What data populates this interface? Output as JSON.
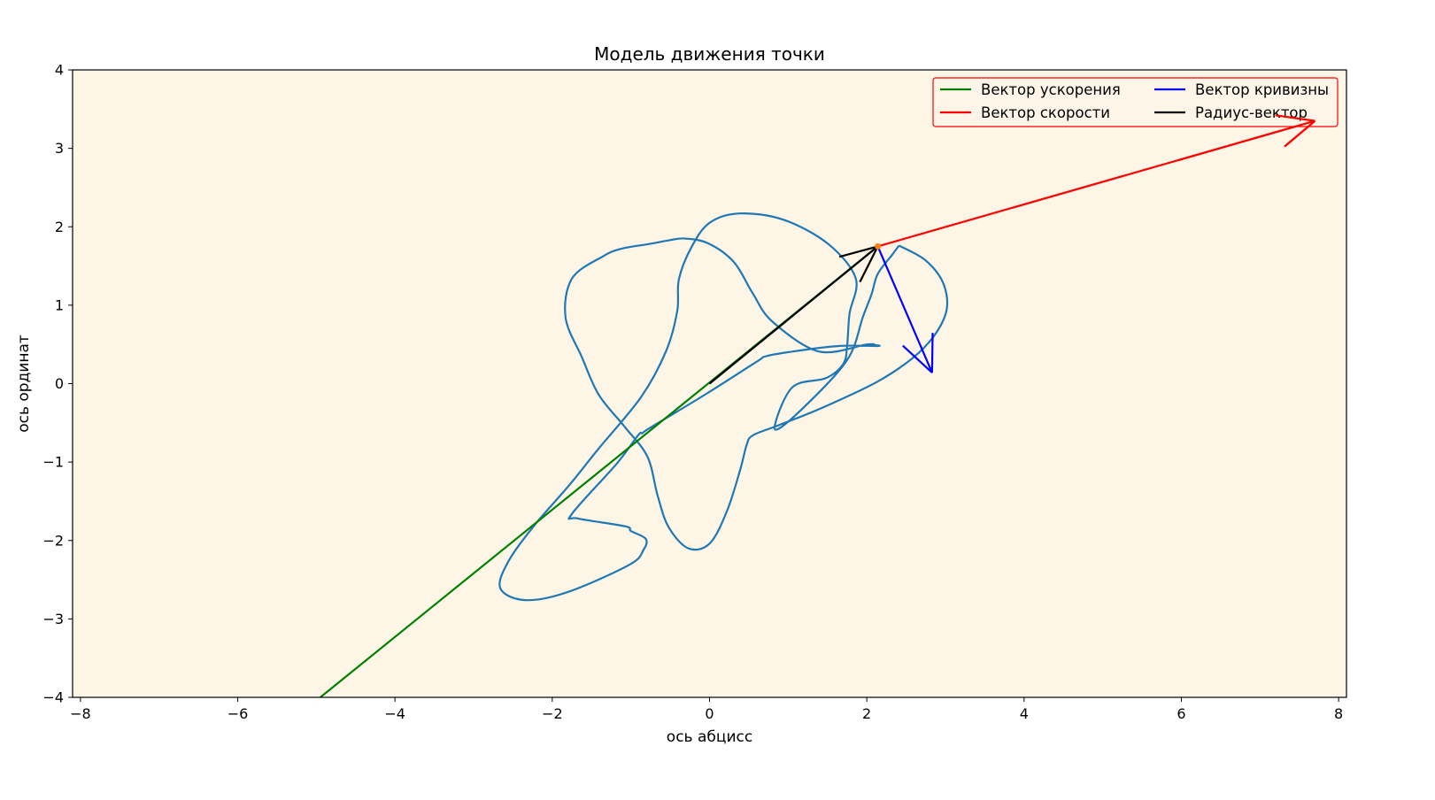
{
  "chart_data": {
    "type": "line",
    "title": "Модель движения точки",
    "xlabel": "ось абцисс",
    "ylabel": "ось ординат",
    "xlim": [
      -8.1,
      8.1
    ],
    "ylim": [
      -4,
      4
    ],
    "xticks": [
      -8,
      -6,
      -4,
      -2,
      0,
      2,
      4,
      6,
      8
    ],
    "yticks": [
      -4,
      -3,
      -2,
      -1,
      0,
      1,
      2,
      3,
      4
    ],
    "xtick_labels": [
      "−8",
      "−6",
      "−4",
      "−2",
      "0",
      "2",
      "4",
      "6",
      "8"
    ],
    "ytick_labels": [
      "−4",
      "−3",
      "−2",
      "−1",
      "0",
      "1",
      "2",
      "3",
      "4"
    ],
    "axes_facecolor": "#fdf5e6",
    "grid": false,
    "legend": {
      "placement": "upper right",
      "columns": 2
    },
    "trajectory": {
      "color": "#1f77b4",
      "x": [
        2.41,
        2.75,
        2.98,
        3.0,
        2.72,
        2.18,
        1.45,
        0.88,
        0.55,
        0.47,
        0.39,
        0.22,
        0.0,
        -0.27,
        -0.52,
        -0.66,
        -0.79,
        -1.08,
        -1.41,
        -1.62,
        -1.83,
        -1.75,
        -1.36,
        -1.12,
        -0.77,
        -0.5,
        -0.32,
        -0.02,
        0.31,
        0.55,
        0.8,
        1.39,
        2.0,
        2.11,
        2.12,
        2.13,
        1.64,
        1.06,
        0.72,
        0.6,
        -0.04,
        -0.75,
        -0.85,
        -0.91,
        -1.18,
        -1.75,
        -1.67,
        -1.07,
        -1.0,
        -0.81,
        -0.84,
        -1.02,
        -1.81,
        -2.35,
        -2.66,
        -2.56,
        -2.23,
        -1.78,
        -1.42,
        -0.87,
        -0.55,
        -0.41,
        -0.39,
        -0.23,
        0.0,
        0.38,
        0.94,
        1.51,
        1.86,
        1.78,
        1.75,
        1.7,
        1.48,
        1.05,
        0.83,
        1.18,
        1.75,
        1.95,
        2.06,
        2.14,
        2.32,
        2.41
      ],
      "y": [
        1.76,
        1.57,
        1.26,
        0.88,
        0.45,
        0.05,
        -0.3,
        -0.53,
        -0.66,
        -0.79,
        -1.1,
        -1.63,
        -2.04,
        -2.1,
        -1.83,
        -1.43,
        -0.93,
        -0.55,
        -0.14,
        0.33,
        0.84,
        1.34,
        1.62,
        1.72,
        1.78,
        1.83,
        1.85,
        1.79,
        1.55,
        1.15,
        0.79,
        0.41,
        0.5,
        0.49,
        0.49,
        0.48,
        0.48,
        0.41,
        0.35,
        0.28,
        -0.13,
        -0.56,
        -0.63,
        -0.66,
        -1.02,
        -1.66,
        -1.72,
        -1.82,
        -1.88,
        -1.98,
        -2.12,
        -2.31,
        -2.66,
        -2.76,
        -2.61,
        -2.27,
        -1.81,
        -1.29,
        -0.84,
        -0.17,
        0.42,
        0.93,
        1.33,
        1.74,
        2.05,
        2.17,
        2.09,
        1.78,
        1.34,
        0.89,
        0.48,
        0.25,
        0.07,
        -0.05,
        -0.58,
        -0.32,
        0.3,
        0.85,
        1.14,
        1.4,
        1.64,
        1.76
      ]
    },
    "point": {
      "x": 2.14,
      "y": 1.75,
      "color": "#ff7f0e"
    },
    "vectors": [
      {
        "name": "Вектор ускорения",
        "color": "#008000",
        "from": [
          2.14,
          1.75
        ],
        "to": [
          -4.95,
          -4.0
        ],
        "head": false
      },
      {
        "name": "Вектор скорости",
        "color": "#ff0000",
        "from": [
          2.14,
          1.75
        ],
        "to": [
          7.7,
          3.35
        ],
        "head": true
      },
      {
        "name": "Вектор кривизны",
        "color": "#0000ff",
        "from": [
          2.14,
          1.75
        ],
        "to": [
          2.83,
          0.14
        ],
        "head": true
      },
      {
        "name": "Радиус-вектор",
        "color": "#000000",
        "from": [
          0.0,
          0.0
        ],
        "to": [
          2.14,
          1.75
        ],
        "head": true
      }
    ],
    "legend_entries": [
      "Вектор ускорения",
      "Вектор скорости",
      "Вектор кривизны",
      "Радиус-вектор"
    ]
  }
}
